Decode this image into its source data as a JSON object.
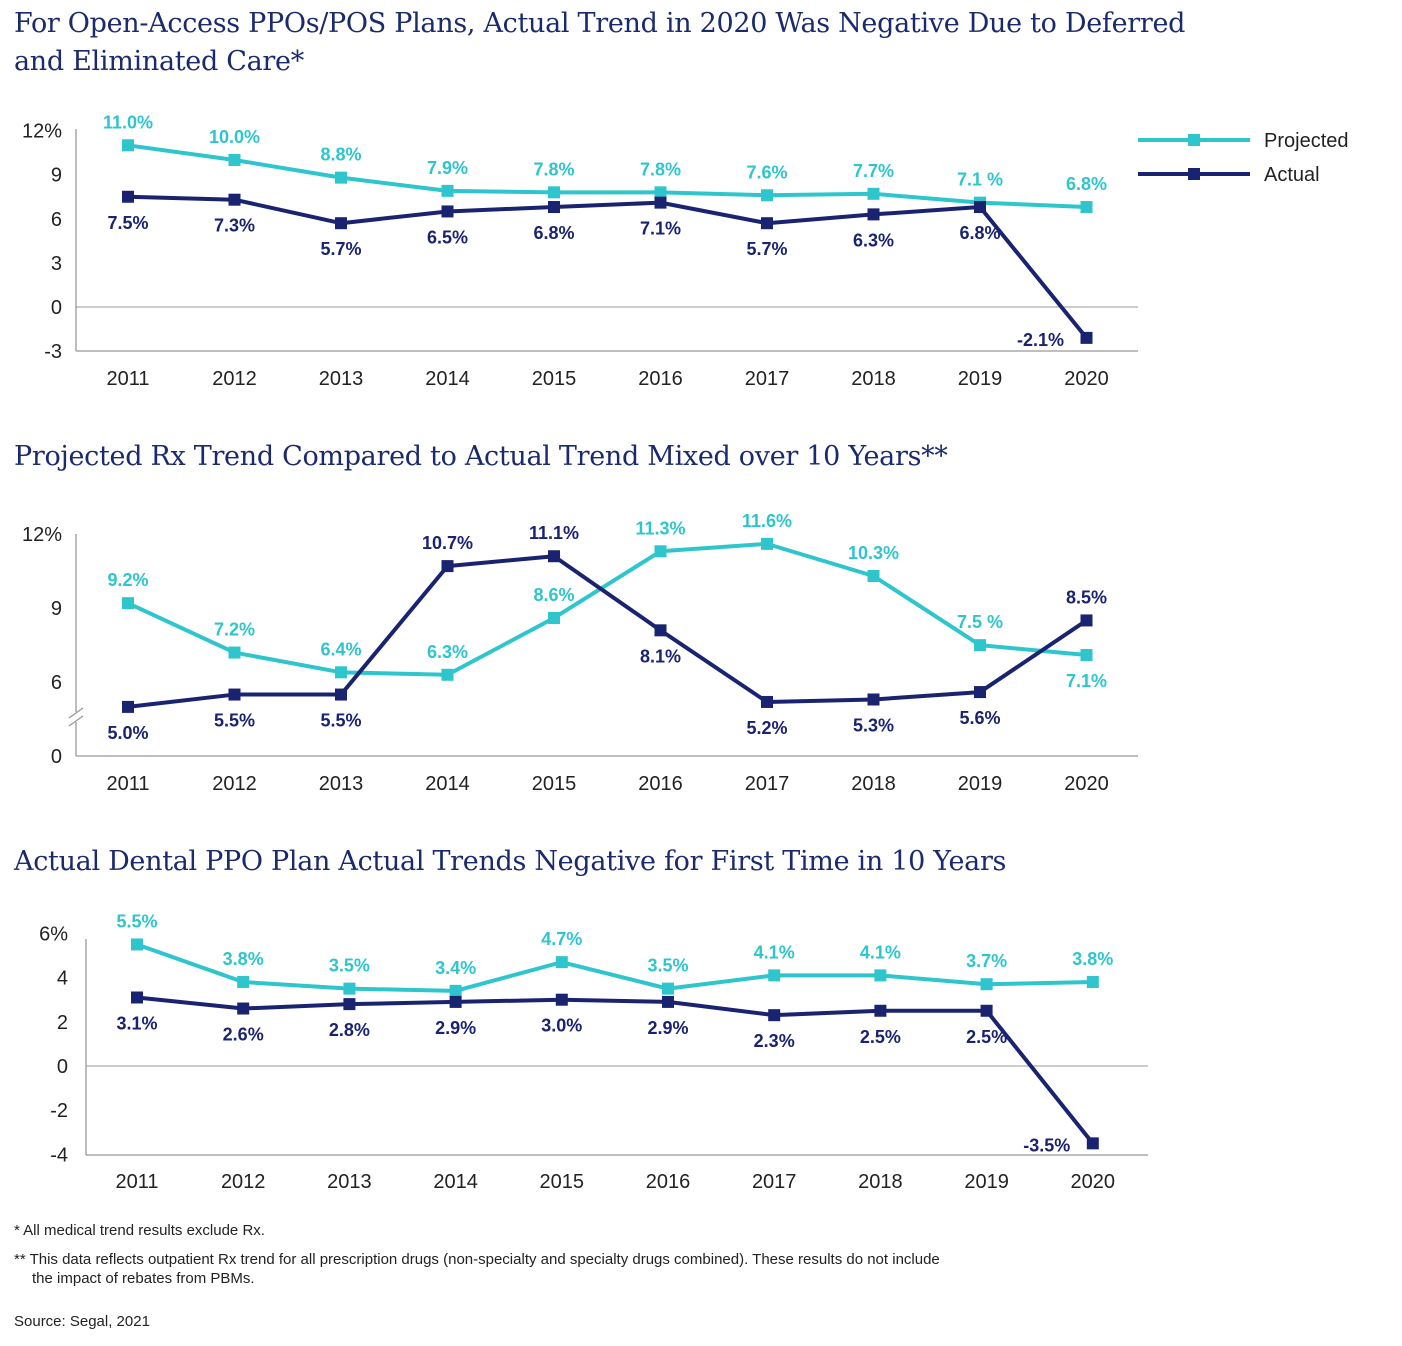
{
  "colors": {
    "projected": "#2ec5cd",
    "actual": "#1a2370",
    "title": "#1a2a6c",
    "axis": "#999999",
    "text": "#222222"
  },
  "legend": {
    "projected": "Projected",
    "actual": "Actual",
    "placement": "top-right"
  },
  "chart_data": [
    {
      "type": "line",
      "title": "For Open-Access PPOs/POS Plans, Actual Trend in 2020 Was Negative Due to Deferred and Eliminated Care*",
      "title_line1": "For Open-Access PPOs/POS Plans, Actual Trend in 2020 Was Negative Due to Deferred",
      "title_line2": "and Eliminated Care*",
      "categories": [
        "2011",
        "2012",
        "2013",
        "2014",
        "2015",
        "2016",
        "2017",
        "2018",
        "2019",
        "2020"
      ],
      "yticks": [
        "12%",
        "9",
        "6",
        "3",
        "0",
        "-3"
      ],
      "ylim": [
        -3,
        12
      ],
      "series": [
        {
          "name": "Projected",
          "values": [
            11.0,
            10.0,
            8.8,
            7.9,
            7.8,
            7.8,
            7.6,
            7.7,
            7.1,
            6.8
          ],
          "labels": [
            "11.0%",
            "10.0%",
            "8.8%",
            "7.9%",
            "7.8%",
            "7.8%",
            "7.6%",
            "7.7%",
            "7.1 %",
            "6.8%"
          ]
        },
        {
          "name": "Actual",
          "values": [
            7.5,
            7.3,
            5.7,
            6.5,
            6.8,
            7.1,
            5.7,
            6.3,
            6.8,
            -2.1
          ],
          "labels": [
            "7.5%",
            "7.3%",
            "5.7%",
            "6.5%",
            "6.8%",
            "7.1%",
            "5.7%",
            "6.3%",
            "6.8%",
            "-2.1%"
          ]
        }
      ],
      "grid": false,
      "legend": true
    },
    {
      "type": "line",
      "title": "Projected Rx Trend Compared to Actual Trend Mixed over 10 Years**",
      "categories": [
        "2011",
        "2012",
        "2013",
        "2014",
        "2015",
        "2016",
        "2017",
        "2018",
        "2019",
        "2020"
      ],
      "yticks": [
        "12%",
        "9",
        "6",
        "0"
      ],
      "ylim": [
        0,
        12
      ],
      "axis_break": true,
      "series": [
        {
          "name": "Projected",
          "values": [
            9.2,
            7.2,
            6.4,
            6.3,
            8.6,
            11.3,
            11.6,
            10.3,
            7.5,
            7.1
          ],
          "labels": [
            "9.2%",
            "7.2%",
            "6.4%",
            "6.3%",
            "8.6%",
            "11.3%",
            "11.6%",
            "10.3%",
            "7.5 %",
            "7.1%"
          ]
        },
        {
          "name": "Actual",
          "values": [
            5.0,
            5.5,
            5.5,
            10.7,
            11.1,
            8.1,
            5.2,
            5.3,
            5.6,
            8.5
          ],
          "labels": [
            "5.0%",
            "5.5%",
            "5.5%",
            "10.7%",
            "11.1%",
            "8.1%",
            "5.2%",
            "5.3%",
            "5.6%",
            "8.5%"
          ]
        }
      ],
      "grid": false,
      "legend": false
    },
    {
      "type": "line",
      "title": "Actual Dental PPO Plan Actual Trends Negative for First Time in 10 Years",
      "categories": [
        "2011",
        "2012",
        "2013",
        "2014",
        "2015",
        "2016",
        "2017",
        "2018",
        "2019",
        "2020"
      ],
      "yticks": [
        "6%",
        "4",
        "2",
        "0",
        "-2",
        "-4"
      ],
      "ylim": [
        -4,
        6
      ],
      "series": [
        {
          "name": "Projected",
          "values": [
            5.5,
            3.8,
            3.5,
            3.4,
            4.7,
            3.5,
            4.1,
            4.1,
            3.7,
            3.8
          ],
          "labels": [
            "5.5%",
            "3.8%",
            "3.5%",
            "3.4%",
            "4.7%",
            "3.5%",
            "4.1%",
            "4.1%",
            "3.7%",
            "3.8%"
          ]
        },
        {
          "name": "Actual",
          "values": [
            3.1,
            2.6,
            2.8,
            2.9,
            3.0,
            2.9,
            2.3,
            2.5,
            2.5,
            -3.5
          ],
          "labels": [
            "3.1%",
            "2.6%",
            "2.8%",
            "2.9%",
            "3.0%",
            "2.9%",
            "2.3%",
            "2.5%",
            "2.5%",
            "-3.5%"
          ]
        }
      ],
      "grid": false,
      "legend": false
    }
  ],
  "footnotes": {
    "note1": "* All medical trend results exclude Rx.",
    "note2_line1": "** This data reflects outpatient Rx trend for all prescription drugs (non-specialty and specialty drugs combined). These results do not include",
    "note2_line2": "the impact of rebates from PBMs.",
    "source": "Source: Segal, 2021"
  }
}
